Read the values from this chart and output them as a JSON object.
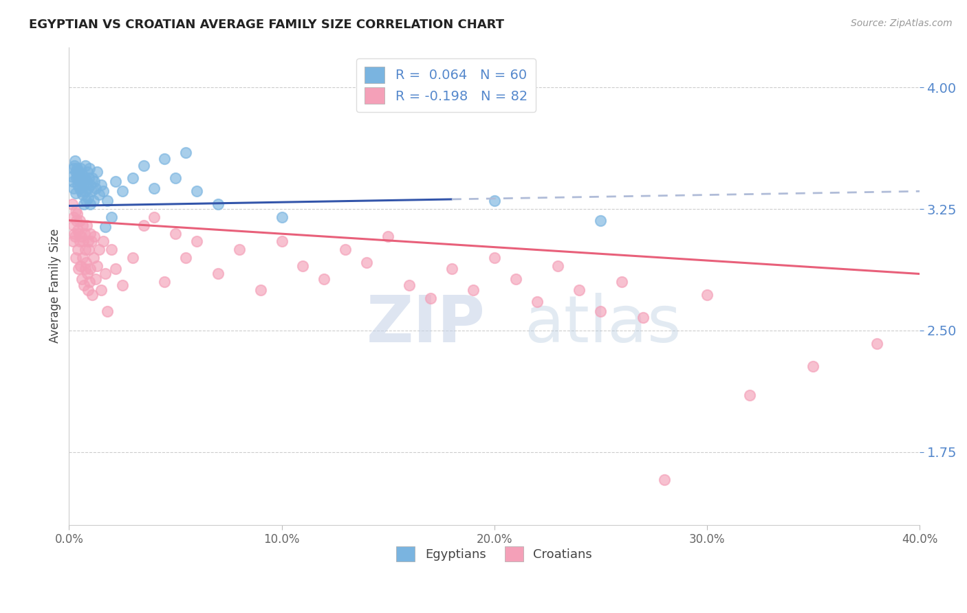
{
  "title": "EGYPTIAN VS CROATIAN AVERAGE FAMILY SIZE CORRELATION CHART",
  "source": "Source: ZipAtlas.com",
  "ylabel": "Average Family Size",
  "yticks": [
    1.75,
    2.5,
    3.25,
    4.0
  ],
  "xmin": 0.0,
  "xmax": 40.0,
  "ymin": 1.3,
  "ymax": 4.25,
  "legend_label_egyptians": "Egyptians",
  "legend_label_croatians": "Croatians",
  "blue_scatter_color": "#7ab4e0",
  "pink_scatter_color": "#f4a0b8",
  "blue_line_color": "#3355aa",
  "pink_line_color": "#e8607a",
  "dashed_line_color": "#b0bcd8",
  "title_color": "#222222",
  "axis_label_color": "#444444",
  "ytick_color": "#5588cc",
  "xtick_color": "#666666",
  "background_color": "#ffffff",
  "grid_color": "#cccccc",
  "R_blue": 0.064,
  "N_blue": 60,
  "R_pink": -0.198,
  "N_pink": 82,
  "blue_line_x0": 0.0,
  "blue_line_y0": 3.27,
  "blue_line_x1": 40.0,
  "blue_line_y1": 3.36,
  "blue_dash_start_x": 18.0,
  "pink_line_x0": 0.0,
  "pink_line_y0": 3.18,
  "pink_line_x1": 40.0,
  "pink_line_y1": 2.85,
  "blue_points": [
    [
      0.15,
      3.45
    ],
    [
      0.2,
      3.5
    ],
    [
      0.25,
      3.52
    ],
    [
      0.3,
      3.48
    ],
    [
      0.35,
      3.44
    ],
    [
      0.18,
      3.42
    ],
    [
      0.22,
      3.38
    ],
    [
      0.28,
      3.55
    ],
    [
      0.32,
      3.35
    ],
    [
      0.38,
      3.5
    ],
    [
      0.4,
      3.45
    ],
    [
      0.42,
      3.4
    ],
    [
      0.45,
      3.48
    ],
    [
      0.48,
      3.42
    ],
    [
      0.5,
      3.38
    ],
    [
      0.52,
      3.44
    ],
    [
      0.55,
      3.5
    ],
    [
      0.58,
      3.36
    ],
    [
      0.6,
      3.42
    ],
    [
      0.62,
      3.46
    ],
    [
      0.65,
      3.34
    ],
    [
      0.68,
      3.4
    ],
    [
      0.7,
      3.28
    ],
    [
      0.72,
      3.44
    ],
    [
      0.75,
      3.52
    ],
    [
      0.78,
      3.36
    ],
    [
      0.8,
      3.3
    ],
    [
      0.82,
      3.42
    ],
    [
      0.85,
      3.48
    ],
    [
      0.88,
      3.38
    ],
    [
      0.9,
      3.32
    ],
    [
      0.92,
      3.44
    ],
    [
      0.95,
      3.5
    ],
    [
      0.98,
      3.28
    ],
    [
      1.0,
      3.4
    ],
    [
      1.05,
      3.36
    ],
    [
      1.1,
      3.44
    ],
    [
      1.15,
      3.3
    ],
    [
      1.2,
      3.42
    ],
    [
      1.25,
      3.38
    ],
    [
      1.3,
      3.48
    ],
    [
      1.4,
      3.34
    ],
    [
      1.5,
      3.4
    ],
    [
      1.6,
      3.36
    ],
    [
      1.7,
      3.14
    ],
    [
      1.8,
      3.3
    ],
    [
      2.0,
      3.2
    ],
    [
      2.2,
      3.42
    ],
    [
      2.5,
      3.36
    ],
    [
      3.0,
      3.44
    ],
    [
      3.5,
      3.52
    ],
    [
      4.0,
      3.38
    ],
    [
      4.5,
      3.56
    ],
    [
      5.0,
      3.44
    ],
    [
      5.5,
      3.6
    ],
    [
      6.0,
      3.36
    ],
    [
      7.0,
      3.28
    ],
    [
      10.0,
      3.2
    ],
    [
      20.0,
      3.3
    ],
    [
      25.0,
      3.18
    ]
  ],
  "pink_points": [
    [
      0.15,
      3.28
    ],
    [
      0.2,
      3.2
    ],
    [
      0.25,
      3.1
    ],
    [
      0.3,
      3.24
    ],
    [
      0.35,
      3.18
    ],
    [
      0.18,
      3.05
    ],
    [
      0.22,
      3.15
    ],
    [
      0.28,
      3.08
    ],
    [
      0.32,
      2.95
    ],
    [
      0.38,
      3.22
    ],
    [
      0.4,
      3.0
    ],
    [
      0.42,
      3.12
    ],
    [
      0.45,
      2.88
    ],
    [
      0.48,
      3.1
    ],
    [
      0.5,
      3.05
    ],
    [
      0.52,
      3.18
    ],
    [
      0.55,
      2.9
    ],
    [
      0.58,
      3.08
    ],
    [
      0.6,
      2.82
    ],
    [
      0.62,
      3.15
    ],
    [
      0.65,
      2.95
    ],
    [
      0.68,
      3.05
    ],
    [
      0.7,
      2.78
    ],
    [
      0.72,
      3.1
    ],
    [
      0.75,
      2.88
    ],
    [
      0.78,
      3.0
    ],
    [
      0.8,
      2.92
    ],
    [
      0.82,
      3.15
    ],
    [
      0.85,
      2.85
    ],
    [
      0.88,
      3.05
    ],
    [
      0.9,
      2.75
    ],
    [
      0.92,
      3.0
    ],
    [
      0.95,
      2.8
    ],
    [
      0.98,
      3.1
    ],
    [
      1.0,
      2.88
    ],
    [
      1.05,
      3.05
    ],
    [
      1.1,
      2.72
    ],
    [
      1.15,
      2.95
    ],
    [
      1.2,
      3.08
    ],
    [
      1.25,
      2.82
    ],
    [
      1.3,
      2.9
    ],
    [
      1.4,
      3.0
    ],
    [
      1.5,
      2.75
    ],
    [
      1.6,
      3.05
    ],
    [
      1.7,
      2.85
    ],
    [
      1.8,
      2.62
    ],
    [
      2.0,
      3.0
    ],
    [
      2.2,
      2.88
    ],
    [
      2.5,
      2.78
    ],
    [
      3.0,
      2.95
    ],
    [
      3.5,
      3.15
    ],
    [
      4.0,
      3.2
    ],
    [
      4.5,
      2.8
    ],
    [
      5.0,
      3.1
    ],
    [
      5.5,
      2.95
    ],
    [
      6.0,
      3.05
    ],
    [
      7.0,
      2.85
    ],
    [
      8.0,
      3.0
    ],
    [
      9.0,
      2.75
    ],
    [
      10.0,
      3.05
    ],
    [
      11.0,
      2.9
    ],
    [
      12.0,
      2.82
    ],
    [
      13.0,
      3.0
    ],
    [
      14.0,
      2.92
    ],
    [
      15.0,
      3.08
    ],
    [
      16.0,
      2.78
    ],
    [
      17.0,
      2.7
    ],
    [
      18.0,
      2.88
    ],
    [
      19.0,
      2.75
    ],
    [
      20.0,
      2.95
    ],
    [
      21.0,
      2.82
    ],
    [
      22.0,
      2.68
    ],
    [
      23.0,
      2.9
    ],
    [
      24.0,
      2.75
    ],
    [
      25.0,
      2.62
    ],
    [
      26.0,
      2.8
    ],
    [
      27.0,
      2.58
    ],
    [
      28.0,
      1.58
    ],
    [
      30.0,
      2.72
    ],
    [
      32.0,
      2.1
    ],
    [
      35.0,
      2.28
    ],
    [
      38.0,
      2.42
    ]
  ]
}
